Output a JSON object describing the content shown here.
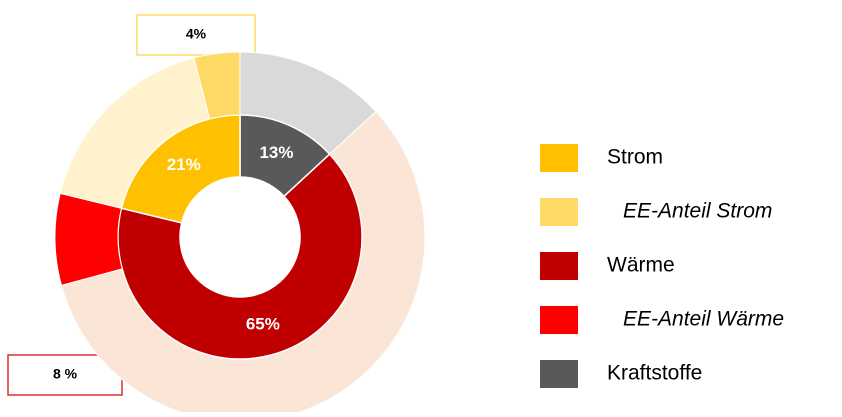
{
  "chart_data": {
    "type": "donut",
    "categories": [
      "Strom",
      "Wärme",
      "Kraftstoffe"
    ],
    "values": [
      21,
      65,
      13
    ],
    "value_labels": [
      "21%",
      "65%",
      "13%"
    ],
    "colors": [
      "#ffc000",
      "#c00000",
      "#595959"
    ],
    "outer_colors": [
      "#fff2cc",
      "#fbe5d6",
      "#d9d9d9"
    ],
    "ee_names": [
      "EE-Anteil Strom",
      "EE-Anteil Wärme",
      null
    ],
    "ee_values": [
      4,
      8,
      null
    ],
    "ee_value_labels": [
      "4%",
      "8 %",
      null
    ],
    "ee_colors": [
      "#ffd966",
      "#ff0000",
      null
    ],
    "legend": "right"
  }
}
